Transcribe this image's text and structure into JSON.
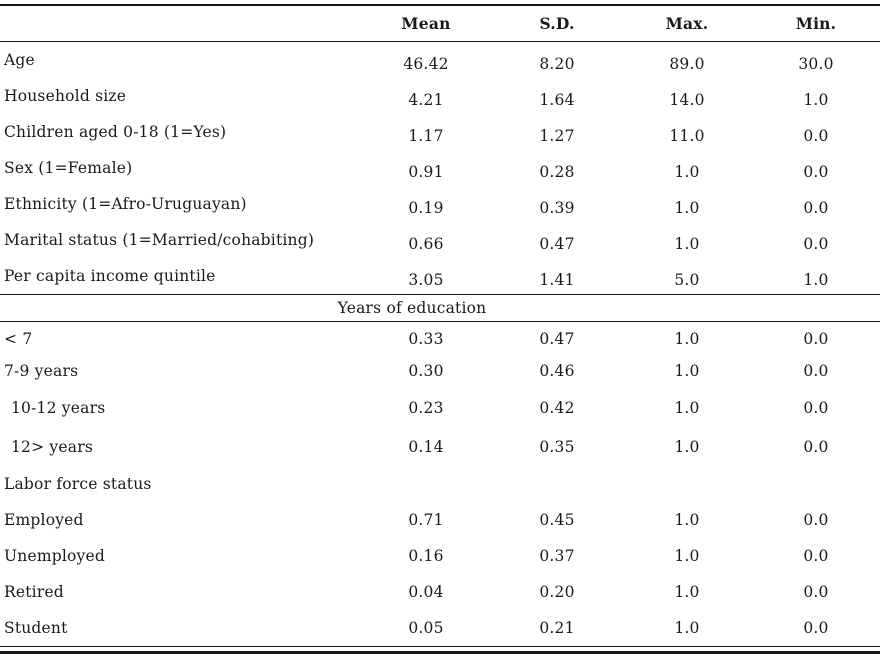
{
  "table": {
    "rules_color": "#161616",
    "columns": [
      "",
      "Mean",
      "S.D.",
      "Max.",
      "Min."
    ],
    "rows": [
      {
        "kind": "data",
        "label": "Age",
        "values": [
          "46.42",
          "8.20",
          "89.0",
          "30.0"
        ]
      },
      {
        "kind": "data",
        "label": "Household size",
        "values": [
          "4.21",
          "1.64",
          "14.0",
          "1.0"
        ]
      },
      {
        "kind": "data",
        "label": "Children aged 0-18 (1=Yes)",
        "values": [
          "1.17",
          "1.27",
          "11.0",
          "0.0"
        ]
      },
      {
        "kind": "data",
        "label": "Sex (1=Female)",
        "values": [
          "0.91",
          "0.28",
          "1.0",
          "0.0"
        ]
      },
      {
        "kind": "data",
        "label": "Ethnicity (1=Afro-Uruguayan)",
        "values": [
          "0.19",
          "0.39",
          "1.0",
          "0.0"
        ]
      },
      {
        "kind": "data",
        "label": "Marital status (1=Married/cohabiting)",
        "values": [
          "0.66",
          "0.47",
          "1.0",
          "0.0"
        ]
      },
      {
        "kind": "data",
        "label": "Per capita income quintile",
        "values": [
          "3.05",
          "1.41",
          "5.0",
          "1.0"
        ]
      },
      {
        "kind": "section-centered",
        "label": "Years of education"
      },
      {
        "kind": "data",
        "label": "< 7",
        "values": [
          "0.33",
          "0.47",
          "1.0",
          "0.0"
        ]
      },
      {
        "kind": "data",
        "label": "7-9 years",
        "values": [
          "0.30",
          "0.46",
          "1.0",
          "0.0"
        ]
      },
      {
        "kind": "data",
        "label": "10-12 years",
        "indent": true,
        "values": [
          "0.23",
          "0.42",
          "1.0",
          "0.0"
        ]
      },
      {
        "kind": "data",
        "label": "12> years",
        "indent": true,
        "values": [
          "0.14",
          "0.35",
          "1.0",
          "0.0"
        ]
      },
      {
        "kind": "section-left",
        "label": "Labor force status"
      },
      {
        "kind": "data",
        "label": "Employed",
        "values": [
          "0.71",
          "0.45",
          "1.0",
          "0.0"
        ]
      },
      {
        "kind": "data",
        "label": "Unemployed",
        "values": [
          "0.16",
          "0.37",
          "1.0",
          "0.0"
        ]
      },
      {
        "kind": "data",
        "label": "Retired",
        "values": [
          "0.04",
          "0.20",
          "1.0",
          "0.0"
        ]
      },
      {
        "kind": "data",
        "label": "Student",
        "values": [
          "0.05",
          "0.21",
          "1.0",
          "0.0"
        ]
      }
    ]
  }
}
